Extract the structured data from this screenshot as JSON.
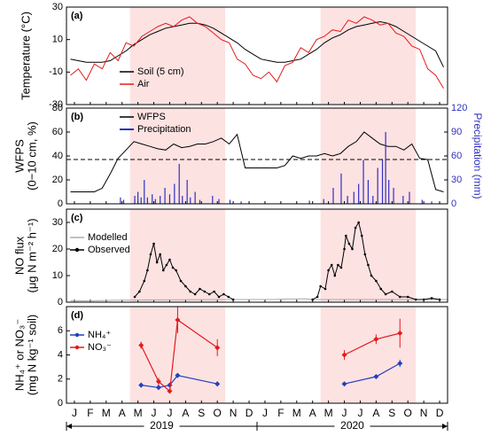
{
  "chart_data": [
    {
      "type": "line",
      "panel": "(a)",
      "ylabel": [
        "Temperature (°C)"
      ],
      "ylim": [
        -30,
        30
      ],
      "yticks": [
        -30,
        -10,
        10,
        30
      ],
      "shaded": [
        [
          4,
          10
        ],
        [
          16,
          22
        ]
      ],
      "legend": "center-left",
      "x": [
        0.25,
        0.75,
        1.25,
        1.75,
        2.25,
        2.75,
        3.25,
        3.75,
        4.25,
        4.75,
        5.25,
        5.75,
        6.25,
        6.75,
        7.25,
        7.75,
        8.25,
        8.75,
        9.25,
        9.75,
        10.25,
        10.75,
        11.25,
        11.75,
        12.25,
        12.75,
        13.25,
        13.75,
        14.25,
        14.75,
        15.25,
        15.75,
        16.25,
        16.75,
        17.25,
        17.75,
        18.25,
        18.75,
        19.25,
        19.75,
        20.25,
        20.75,
        21.25,
        21.75,
        22.25,
        22.75,
        23.25,
        23.75
      ],
      "series": [
        {
          "name": "Soil (5 cm)",
          "color": "#000000",
          "values": [
            -2,
            -3,
            -4,
            -4,
            -4,
            -3,
            0,
            3,
            7,
            10,
            13,
            15,
            17,
            18,
            19,
            20,
            20,
            19,
            17,
            14,
            11,
            8,
            4,
            1,
            -2,
            -3,
            -4,
            -4,
            -3,
            -2,
            1,
            4,
            8,
            11,
            13,
            16,
            18,
            19,
            20,
            21,
            20,
            18,
            15,
            12,
            9,
            6,
            3,
            -7
          ]
        },
        {
          "name": "Air",
          "color": "#e41a1c",
          "values": [
            -12,
            -8,
            -15,
            -5,
            -8,
            2,
            -3,
            8,
            6,
            12,
            15,
            18,
            20,
            18,
            22,
            24,
            20,
            18,
            14,
            10,
            8,
            -2,
            -5,
            -12,
            -14,
            -10,
            -16,
            -6,
            -4,
            5,
            2,
            10,
            12,
            16,
            15,
            22,
            20,
            24,
            22,
            19,
            20,
            14,
            12,
            6,
            4,
            -8,
            -12,
            -20
          ]
        }
      ]
    },
    {
      "type": "line",
      "panel": "(b)",
      "ylabel": [
        "WFPS",
        "(0−10 cm, %)"
      ],
      "y2label": "Precipitation (mm)",
      "ylim": [
        0,
        80
      ],
      "yticks": [
        0,
        20,
        40,
        60,
        80
      ],
      "y2lim": [
        0,
        120
      ],
      "y2ticks": [
        0,
        30,
        60,
        90,
        120
      ],
      "shaded": [
        [
          4,
          10
        ],
        [
          16,
          22
        ]
      ],
      "hline": 37,
      "legend": "upper-left",
      "series": [
        {
          "name": "WFPS",
          "color": "#000000",
          "x": [
            0.25,
            0.75,
            1.25,
            1.75,
            2.25,
            2.75,
            3.25,
            3.75,
            4.25,
            4.75,
            5.25,
            5.75,
            6.25,
            6.75,
            7.25,
            7.75,
            8.25,
            8.75,
            9.25,
            9.75,
            10.25,
            10.75,
            11.25,
            11.75,
            12.25,
            12.75,
            13.25,
            13.75,
            14.25,
            14.75,
            15.25,
            15.75,
            16.25,
            16.75,
            17.25,
            17.75,
            18.25,
            18.75,
            19.25,
            19.75,
            20.25,
            20.75,
            21.25,
            21.75,
            22.25,
            22.75,
            23.25,
            23.75
          ],
          "values": [
            10,
            10,
            10,
            10,
            13,
            25,
            38,
            45,
            52,
            50,
            48,
            46,
            45,
            50,
            47,
            48,
            50,
            50,
            52,
            55,
            50,
            58,
            30,
            30,
            30,
            30,
            30,
            32,
            40,
            38,
            40,
            40,
            42,
            40,
            42,
            48,
            52,
            60,
            55,
            50,
            48,
            48,
            45,
            50,
            38,
            37,
            12,
            10
          ]
        },
        {
          "name": "Precipitation",
          "color": "#3030c0",
          "type": "bar",
          "axis": "y2",
          "x": [
            3.4,
            3.6,
            4.3,
            4.5,
            4.7,
            4.9,
            5.1,
            5.4,
            5.6,
            5.9,
            6.2,
            6.5,
            6.8,
            7.1,
            7.3,
            7.6,
            7.8,
            8.1,
            8.4,
            9.2,
            9.6,
            10.3,
            11,
            15.3,
            16.2,
            16.8,
            17.3,
            17.7,
            18.1,
            18.4,
            18.7,
            19,
            19.3,
            19.6,
            19.9,
            20.1,
            20.3,
            20.6,
            21.2,
            21.6,
            22.4,
            23
          ],
          "values": [
            8,
            5,
            10,
            15,
            8,
            30,
            8,
            12,
            6,
            10,
            20,
            12,
            25,
            50,
            10,
            30,
            8,
            15,
            5,
            10,
            6,
            5,
            3,
            4,
            6,
            20,
            38,
            10,
            15,
            25,
            55,
            30,
            10,
            45,
            55,
            90,
            30,
            20,
            10,
            15,
            5,
            3
          ]
        }
      ]
    },
    {
      "type": "line",
      "panel": "(c)",
      "ylabel": [
        "NO flux",
        "(μg N m⁻² h⁻¹)"
      ],
      "ylim": [
        0,
        35
      ],
      "yticks": [
        0,
        10,
        20,
        30
      ],
      "shaded": [
        [
          4,
          10
        ],
        [
          16,
          22
        ]
      ],
      "legend": "left",
      "series": [
        {
          "name": "Modelled",
          "color": "#aaaaaa",
          "x": [
            0.25,
            1,
            2,
            3,
            4,
            10.5,
            11,
            12,
            13,
            14,
            15,
            15.5,
            23.5,
            24
          ],
          "values": [
            0.5,
            0.5,
            0.6,
            0.7,
            0.8,
            1,
            1,
            1,
            1,
            1.2,
            1.3,
            1,
            1,
            1
          ]
        },
        {
          "name": "Observed",
          "color": "#000000",
          "marker": true,
          "x": [
            4.3,
            4.6,
            4.9,
            5.1,
            5.3,
            5.5,
            5.7,
            5.9,
            6.1,
            6.3,
            6.5,
            6.7,
            6.9,
            7.2,
            7.5,
            7.8,
            8.1,
            8.4,
            8.7,
            9,
            9.3,
            9.6,
            9.9,
            10.2,
            10.5,
            13,
            15.5,
            15.8,
            16,
            16.3,
            16.5,
            16.7,
            16.9,
            17.1,
            17.3,
            17.5,
            17.6,
            17.8,
            18,
            18.2,
            18.4,
            18.6,
            18.8,
            19,
            19.2,
            19.5,
            19.8,
            20.1,
            20.5,
            21,
            21.5,
            22,
            22.5,
            23,
            23.5
          ],
          "values": [
            2,
            4,
            8,
            12,
            18,
            22,
            15,
            18,
            12,
            14,
            16,
            13,
            12,
            8,
            6,
            4,
            3,
            5,
            4,
            3,
            4,
            2,
            3,
            2,
            1,
            null,
            1,
            2,
            6,
            5,
            12,
            14,
            10,
            14,
            13,
            20,
            25,
            22,
            20,
            28,
            30,
            25,
            18,
            14,
            10,
            8,
            5,
            3,
            4,
            2,
            2,
            1,
            1,
            1.5,
            1
          ]
        }
      ]
    },
    {
      "type": "errorbar",
      "panel": "(d)",
      "ylabel": [
        "NH₄⁺ or NO₃⁻",
        "(mg N kg⁻¹ soil)"
      ],
      "ylim": [
        0,
        8
      ],
      "yticks": [
        0,
        2,
        4,
        6
      ],
      "shaded": [
        [
          4,
          10
        ],
        [
          16,
          22
        ]
      ],
      "legend": "left",
      "xlim": [
        0,
        24
      ],
      "xticks": [
        {
          "value": 0.5,
          "label": "J"
        },
        {
          "value": 1.5,
          "label": "F"
        },
        {
          "value": 2.5,
          "label": "M"
        },
        {
          "value": 3.5,
          "label": "A"
        },
        {
          "value": 4.5,
          "label": "M"
        },
        {
          "value": 5.5,
          "label": "J"
        },
        {
          "value": 6.5,
          "label": "J"
        },
        {
          "value": 7.5,
          "label": "A"
        },
        {
          "value": 8.5,
          "label": "S"
        },
        {
          "value": 9.5,
          "label": "O"
        },
        {
          "value": 10.5,
          "label": "N"
        },
        {
          "value": 11.5,
          "label": "D"
        },
        {
          "value": 12.5,
          "label": "J"
        },
        {
          "value": 13.5,
          "label": "F"
        },
        {
          "value": 14.5,
          "label": "M"
        },
        {
          "value": 15.5,
          "label": "A"
        },
        {
          "value": 16.5,
          "label": "M"
        },
        {
          "value": 17.5,
          "label": "J"
        },
        {
          "value": 18.5,
          "label": "J"
        },
        {
          "value": 19.5,
          "label": "A"
        },
        {
          "value": 20.5,
          "label": "S"
        },
        {
          "value": 21.5,
          "label": "O"
        },
        {
          "value": 22.5,
          "label": "N"
        },
        {
          "value": 23.5,
          "label": "D"
        }
      ],
      "years": [
        {
          "value": 6,
          "label": "2019"
        },
        {
          "value": 18,
          "label": "2020"
        }
      ],
      "series": [
        {
          "name": "NH₄⁺",
          "color": "#2040c0",
          "x": [
            4.7,
            5.8,
            6.5,
            7,
            9.5,
            null,
            17.5,
            19.5,
            21
          ],
          "values": [
            1.5,
            1.3,
            1.5,
            2.3,
            1.6,
            null,
            1.6,
            2.2,
            3.3
          ],
          "errors": [
            0.2,
            0.2,
            0.2,
            0.2,
            0.2,
            null,
            0.1,
            0.1,
            0.3
          ]
        },
        {
          "name": "NO₃⁻",
          "color": "#e41a1c",
          "x": [
            4.7,
            5.8,
            6.5,
            7,
            9.5,
            null,
            17.5,
            19.5,
            21
          ],
          "values": [
            4.8,
            1.8,
            1,
            6.9,
            4.6,
            null,
            4,
            5.3,
            5.8
          ],
          "errors": [
            0.3,
            0.3,
            0.2,
            1.1,
            0.7,
            null,
            0.4,
            0.4,
            1.2
          ]
        }
      ]
    }
  ]
}
